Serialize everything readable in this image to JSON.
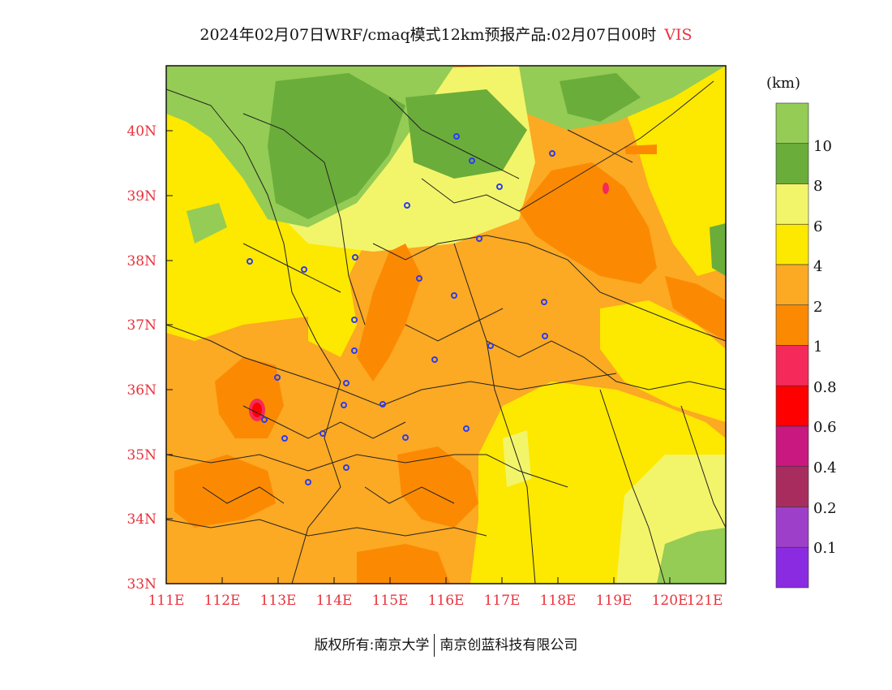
{
  "title": {
    "text": "2024年02月07日WRF/cmaq模式12km预报产品:02月07日00时",
    "variable": "VIS"
  },
  "map": {
    "lon_ticks": [
      "111E",
      "112E",
      "113E",
      "114E",
      "115E",
      "116E",
      "117E",
      "118E",
      "119E",
      "120E",
      "121E"
    ],
    "lat_ticks": [
      "40N",
      "39N",
      "38N",
      "37N",
      "36N",
      "35N",
      "34N",
      "33N"
    ],
    "palette": {
      "green_dark": "#6aad3a",
      "green_light": "#94cc55",
      "yellow_light": "#f2f56a",
      "yellow": "#fde800",
      "orange_light": "#fca923",
      "orange": "#fb8a02",
      "red": "#ff0000",
      "pink_red": "#f5295a"
    }
  },
  "colorbar": {
    "unit": "(km)",
    "labels": [
      "10",
      "8",
      "6",
      "4",
      "2",
      "1",
      "0.8",
      "0.6",
      "0.4",
      "0.2",
      "0.1"
    ],
    "colors": [
      "#94cc55",
      "#6aad3a",
      "#f2f56a",
      "#fde800",
      "#fca923",
      "#fb8a02",
      "#f5295a",
      "#ff0000",
      "#c9187f",
      "#a82d5e",
      "#9e3fc9",
      "#8a2be2"
    ]
  },
  "footer": {
    "left": "版权所有:南京大学",
    "right": "南京创蓝科技有限公司"
  }
}
